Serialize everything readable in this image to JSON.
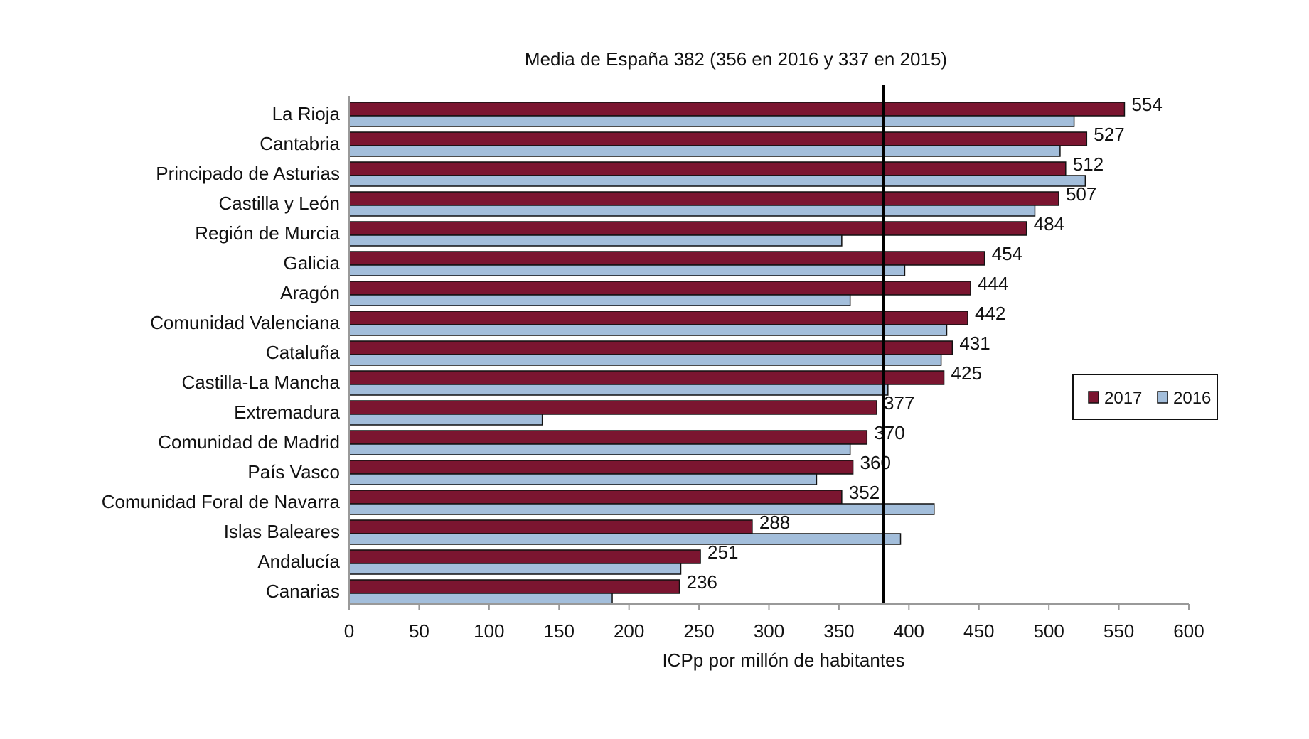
{
  "chart_data": {
    "type": "bar",
    "orientation": "horizontal",
    "title": "Media de España 382 (356 en 2016 y 337 en 2015)",
    "xlabel": "ICPp por millón de habitantes",
    "ylabel": "",
    "xlim": [
      0,
      600
    ],
    "xticks": [
      0,
      50,
      100,
      150,
      200,
      250,
      300,
      350,
      400,
      450,
      500,
      550,
      600
    ],
    "reference_line": {
      "value": 382
    },
    "legend_position": "right",
    "colors": {
      "2017": "#7b1530",
      "2016": "#a3bedb"
    },
    "categories": [
      "La Rioja",
      "Cantabria",
      "Principado de Asturias",
      "Castilla y León",
      "Región de Murcia",
      "Galicia",
      "Aragón",
      "Comunidad Valenciana",
      "Cataluña",
      "Castilla-La Mancha",
      "Extremadura",
      "Comunidad de Madrid",
      "País Vasco",
      "Comunidad Foral de Navarra",
      "Islas Baleares",
      "Andalucía",
      "Canarias"
    ],
    "series": [
      {
        "name": "2017",
        "values": [
          554,
          527,
          512,
          507,
          484,
          454,
          444,
          442,
          431,
          425,
          377,
          370,
          360,
          352,
          288,
          251,
          236
        ],
        "labeled": true
      },
      {
        "name": "2016",
        "values": [
          518,
          508,
          526,
          490,
          352,
          397,
          358,
          427,
          423,
          385,
          138,
          358,
          334,
          418,
          394,
          237,
          188
        ],
        "labeled": false
      }
    ]
  }
}
